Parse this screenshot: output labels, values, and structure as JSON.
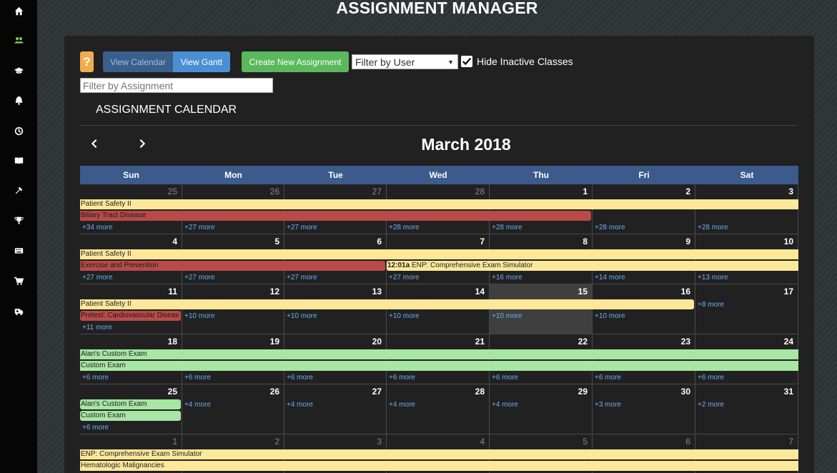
{
  "sidebar": {
    "items": [
      {
        "icon": "home-icon"
      },
      {
        "icon": "users-icon"
      },
      {
        "icon": "graduation-cap-icon"
      },
      {
        "icon": "bell-icon"
      },
      {
        "icon": "history-icon"
      },
      {
        "icon": "book-icon"
      },
      {
        "icon": "wrench-icon"
      },
      {
        "icon": "trophy-icon"
      },
      {
        "icon": "keyboard-icon"
      },
      {
        "icon": "cart-icon"
      },
      {
        "icon": "ambulance-icon"
      }
    ]
  },
  "page_title": "ASSIGNMENT MANAGER",
  "toolbar": {
    "help_label": "?",
    "view_calendar_label": "View Calendar",
    "view_gantt_label": "View Gantt",
    "create_label": "Create New Assignment",
    "filter_user_value": "Filter by User",
    "hide_inactive_label": "Hide Inactive Classes",
    "hide_inactive_checked": true,
    "filter_assignment_placeholder": "Filter by Assignment"
  },
  "calendar": {
    "heading": "ASSIGNMENT CALENDAR",
    "month_title": "March 2018",
    "prev_label": "‹",
    "next_label": "›",
    "days_of_week": [
      "Sun",
      "Mon",
      "Tue",
      "Wed",
      "Thu",
      "Fri",
      "Sat"
    ],
    "weeks": [
      {
        "days": [
          "25",
          "26",
          "27",
          "28",
          "1",
          "2",
          "3"
        ],
        "other_month": [
          true,
          true,
          true,
          true,
          false,
          false,
          false
        ],
        "events": [
          {
            "label": "Patient Safety II",
            "color": "yellow",
            "start": 0,
            "end": 7,
            "row": 0
          },
          {
            "label": "Biliary Tract Disease",
            "color": "red",
            "start": 0,
            "end": 5,
            "row": 1,
            "round": "rr"
          }
        ],
        "more": [
          "+34 more",
          "+27 more",
          "+27 more",
          "+28 more",
          "+28 more",
          "+28 more",
          "+28 more"
        ],
        "more_row": 2
      },
      {
        "days": [
          "4",
          "5",
          "6",
          "7",
          "8",
          "9",
          "10"
        ],
        "other_month": [
          false,
          false,
          false,
          false,
          false,
          false,
          false
        ],
        "events": [
          {
            "label": "Patient Safety II",
            "color": "yellow",
            "start": 0,
            "end": 7,
            "row": 0
          },
          {
            "label": "Exercise and Prevention",
            "color": "red",
            "start": 0,
            "end": 3,
            "row": 1,
            "round": "rr"
          },
          {
            "label": "ENP: Comprehensive Exam Simulator",
            "time": "12:01a",
            "color": "yellow",
            "start": 3,
            "end": 7,
            "row": 1,
            "round": "rl"
          }
        ],
        "more": [
          "+27 more",
          "+27 more",
          "+27 more",
          "+27 more",
          "+16 more",
          "+14 more",
          "+13 more"
        ],
        "more_row": 2
      },
      {
        "days": [
          "11",
          "12",
          "13",
          "14",
          "15",
          "16",
          "17"
        ],
        "other_month": [
          false,
          false,
          false,
          false,
          false,
          false,
          false
        ],
        "today": 4,
        "events": [
          {
            "label": "Patient Safety II",
            "color": "yellow",
            "start": 0,
            "end": 6,
            "row": 0,
            "round": "rr"
          },
          {
            "label": "Pretest: Cardiovascular Diseas",
            "color": "red",
            "start": 0,
            "end": 1,
            "row": 1,
            "round": "ra"
          }
        ],
        "more": [
          "+11 more",
          "+10 more",
          "+10 more",
          "+10 more",
          "+10 more",
          "+10 more",
          "+8 more"
        ],
        "more_rows": [
          2,
          1,
          1,
          1,
          1,
          1,
          0
        ]
      },
      {
        "days": [
          "18",
          "19",
          "20",
          "21",
          "22",
          "23",
          "24"
        ],
        "other_month": [
          false,
          false,
          false,
          false,
          false,
          false,
          false
        ],
        "events": [
          {
            "label": "Alan's Custom Exam",
            "color": "green",
            "start": 0,
            "end": 7,
            "row": 0
          },
          {
            "label": "Custom Exam",
            "color": "green",
            "start": 0,
            "end": 7,
            "row": 1
          }
        ],
        "more": [
          "+6 more",
          "+6 more",
          "+6 more",
          "+6 more",
          "+6 more",
          "+6 more",
          "+6 more"
        ],
        "more_row": 2
      },
      {
        "days": [
          "25",
          "26",
          "27",
          "28",
          "29",
          "30",
          "31"
        ],
        "other_month": [
          false,
          false,
          false,
          false,
          false,
          false,
          false
        ],
        "events": [
          {
            "label": "Alan's Custom Exam",
            "color": "green",
            "start": 0,
            "end": 1,
            "row": 0,
            "round": "ra"
          },
          {
            "label": "Custom Exam",
            "color": "green",
            "start": 0,
            "end": 1,
            "row": 1,
            "round": "ra"
          }
        ],
        "more": [
          "+6 more",
          "+4 more",
          "+4 more",
          "+4 more",
          "+4 more",
          "+3 more",
          "+2 more"
        ],
        "more_rows": [
          2,
          0,
          0,
          0,
          0,
          0,
          0
        ]
      },
      {
        "days": [
          "1",
          "2",
          "3",
          "4",
          "5",
          "6",
          "7"
        ],
        "other_month": [
          true,
          true,
          true,
          true,
          true,
          true,
          true
        ],
        "events": [
          {
            "label": "ENP: Comprehensive Exam Simulator",
            "color": "yellow",
            "start": 0,
            "end": 7,
            "row": 0
          },
          {
            "label": "Hematologic Malignancies",
            "color": "yellow",
            "start": 0,
            "end": 7,
            "row": 1
          }
        ],
        "more": [],
        "more_row": 2
      }
    ]
  },
  "colors": {
    "sidebar_bg": "#050505",
    "panel_bg": "#212121",
    "dow_header": "#3c5b8c",
    "event_yellow": "#fde89a",
    "event_red": "#b94a48",
    "event_green": "#a8e6a3",
    "more_link": "#6aaef0",
    "help_btn": "#f0ad4e",
    "create_btn": "#5cb85c"
  }
}
